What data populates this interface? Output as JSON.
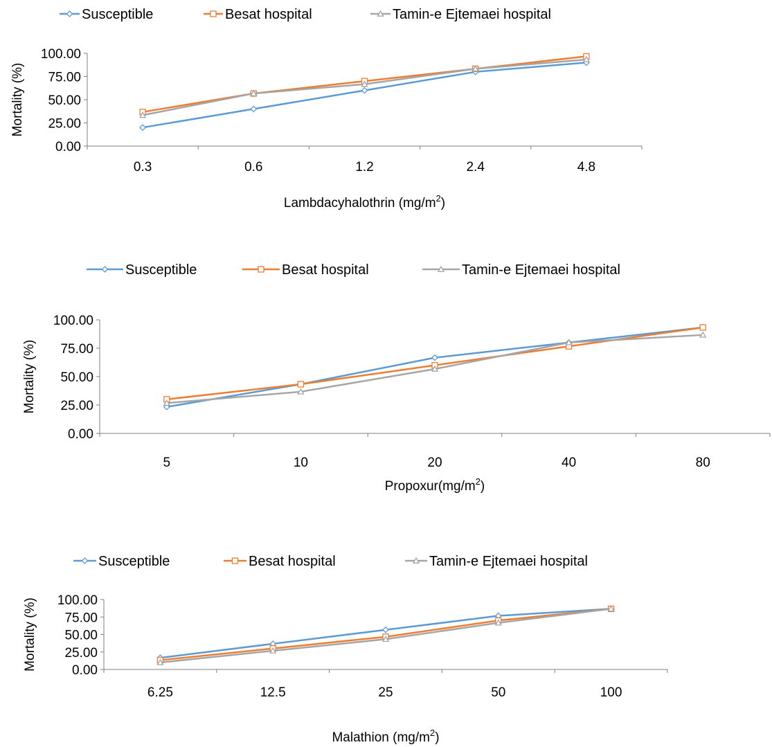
{
  "chart_data": [
    {
      "type": "line",
      "xlabel": "Lambdacyhalothrin (mg/m",
      "xlabel_sup": "2",
      "xlabel_tail": ")",
      "ylabel": "Mortality (%)",
      "categories": [
        "0.3",
        "0.6",
        "1.2",
        "2.4",
        "4.8"
      ],
      "ylim": [
        0,
        100
      ],
      "yticks": [
        "0.00",
        "25.00",
        "50.00",
        "75.00",
        "100.00"
      ],
      "grid": false,
      "legend": "top",
      "series": [
        {
          "name": "Susceptible",
          "values": [
            20,
            40,
            60,
            80,
            90
          ]
        },
        {
          "name": "Besat hospital",
          "values": [
            36.7,
            56.7,
            70,
            83.3,
            96.7
          ]
        },
        {
          "name": "Tamin-e Ejtemaei hospital",
          "values": [
            33.3,
            56.7,
            66.7,
            83.3,
            93.3
          ]
        }
      ]
    },
    {
      "type": "line",
      "xlabel": "Propoxur(mg/m",
      "xlabel_sup": "2",
      "xlabel_tail": ")",
      "ylabel": "Mortality (%)",
      "categories": [
        "5",
        "10",
        "20",
        "40",
        "80"
      ],
      "ylim": [
        0,
        100
      ],
      "yticks": [
        "0.00",
        "25.00",
        "50.00",
        "75.00",
        "100.00"
      ],
      "grid": false,
      "legend": "top",
      "series": [
        {
          "name": "Susceptible",
          "values": [
            23.3,
            43.3,
            66.7,
            80,
            93.3
          ]
        },
        {
          "name": "Besat hospital",
          "values": [
            30,
            43.3,
            60,
            76.7,
            93.3
          ]
        },
        {
          "name": "Tamin-e Ejtemaei hospital",
          "values": [
            26.7,
            36.7,
            56.7,
            80,
            86.7
          ]
        }
      ]
    },
    {
      "type": "line",
      "xlabel": "Malathion (mg/m",
      "xlabel_sup": "2",
      "xlabel_tail": ")",
      "ylabel": "Mortality (%)",
      "categories": [
        "6.25",
        "12.5",
        "25",
        "50",
        "100"
      ],
      "ylim": [
        0,
        100
      ],
      "yticks": [
        "0.00",
        "25.00",
        "50.00",
        "75.00",
        "100.00"
      ],
      "grid": false,
      "legend": "top",
      "series": [
        {
          "name": "Susceptible",
          "values": [
            16.7,
            36.7,
            56.7,
            76.7,
            86.7
          ]
        },
        {
          "name": "Besat hospital",
          "values": [
            13.3,
            30,
            46.7,
            70,
            86.7
          ]
        },
        {
          "name": "Tamin-e Ejtemaei hospital",
          "values": [
            10,
            26.7,
            43.3,
            66.7,
            86.7
          ]
        }
      ]
    }
  ],
  "style": {
    "series_colors": [
      "#5B9BD5",
      "#ED7D31",
      "#A5A5A5"
    ],
    "series_markers": [
      "diamond-icon",
      "square-icon",
      "triangle-icon"
    ],
    "axis_color": "#7F7F7F"
  }
}
